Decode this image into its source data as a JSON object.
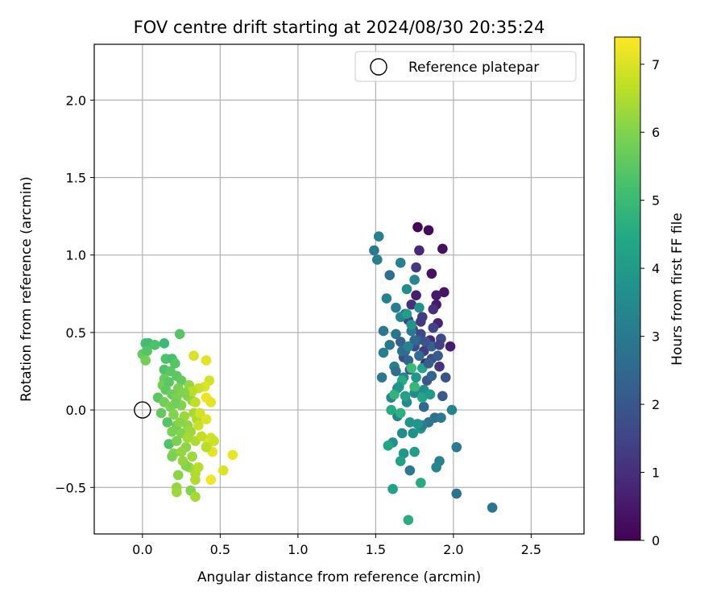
{
  "chart_data": {
    "type": "scatter",
    "title": "FOV centre drift starting at 2024/08/30 20:35:24",
    "xlabel": "Angular distance from reference (arcmin)",
    "ylabel": "Rotation from reference (arcmin)",
    "xlim": [
      -0.31,
      2.84
    ],
    "ylim": [
      -0.8,
      2.36
    ],
    "xticks": [
      "0.0",
      "0.5",
      "1.0",
      "1.5",
      "2.0",
      "2.5"
    ],
    "xtick_values": [
      0,
      0.5,
      1.0,
      1.5,
      2.0,
      2.5
    ],
    "yticks": [
      "−0.5",
      "0.0",
      "0.5",
      "1.0",
      "1.5",
      "2.0"
    ],
    "ytick_values": [
      -0.5,
      0,
      0.5,
      1.0,
      1.5,
      2.0
    ],
    "grid": true,
    "legend": {
      "position": "top-right",
      "entries": [
        "Reference platepar"
      ]
    },
    "reference_point": {
      "x": 0,
      "y": 0,
      "label": "Reference platepar"
    },
    "colorbar": {
      "label": "Hours from first FF file",
      "colormap": "viridis",
      "range": [
        0,
        7.4
      ],
      "ticks": [
        "0",
        "1",
        "2",
        "3",
        "4",
        "5",
        "6",
        "7"
      ],
      "tick_values": [
        0,
        1,
        2,
        3,
        4,
        5,
        6,
        7
      ]
    },
    "points": [
      {
        "x": 1.77,
        "y": 1.18,
        "c": 0.1
      },
      {
        "x": 1.84,
        "y": 1.16,
        "c": 0.2
      },
      {
        "x": 1.93,
        "y": 1.04,
        "c": 0.3
      },
      {
        "x": 1.86,
        "y": 0.88,
        "c": 0.3
      },
      {
        "x": 1.94,
        "y": 0.76,
        "c": 0.4
      },
      {
        "x": 1.89,
        "y": 0.68,
        "c": 0.5
      },
      {
        "x": 1.76,
        "y": 0.74,
        "c": 0.6
      },
      {
        "x": 1.9,
        "y": 0.56,
        "c": 0.7
      },
      {
        "x": 1.98,
        "y": 0.41,
        "c": 0.6
      },
      {
        "x": 1.85,
        "y": 0.45,
        "c": 0.8
      },
      {
        "x": 1.73,
        "y": 0.68,
        "c": 1.0
      },
      {
        "x": 1.82,
        "y": 0.3,
        "c": 0.9
      },
      {
        "x": 1.91,
        "y": 0.28,
        "c": 1.1
      },
      {
        "x": 1.76,
        "y": 0.92,
        "c": 1.2
      },
      {
        "x": 1.8,
        "y": 0.6,
        "c": 1.3
      },
      {
        "x": 1.71,
        "y": 0.58,
        "c": 1.5
      },
      {
        "x": 1.87,
        "y": 0.53,
        "c": 1.4
      },
      {
        "x": 1.79,
        "y": 0.49,
        "c": 1.6
      },
      {
        "x": 1.92,
        "y": 0.46,
        "c": 1.6
      },
      {
        "x": 1.75,
        "y": 0.41,
        "c": 1.7
      },
      {
        "x": 1.86,
        "y": 0.33,
        "c": 1.8
      },
      {
        "x": 1.68,
        "y": 0.34,
        "c": 1.8
      },
      {
        "x": 1.95,
        "y": 0.21,
        "c": 1.9
      },
      {
        "x": 1.72,
        "y": 0.26,
        "c": 2.0
      },
      {
        "x": 1.83,
        "y": 0.19,
        "c": 2.0
      },
      {
        "x": 1.93,
        "y": 0.09,
        "c": 2.1
      },
      {
        "x": 1.77,
        "y": 0.45,
        "c": 2.2
      },
      {
        "x": 1.66,
        "y": 0.44,
        "c": 2.3
      },
      {
        "x": 1.89,
        "y": 0.74,
        "c": 0.5
      },
      {
        "x": 1.81,
        "y": 0.38,
        "c": 1.3
      },
      {
        "x": 1.74,
        "y": 0.52,
        "c": 1.5
      },
      {
        "x": 1.69,
        "y": 0.62,
        "c": 1.6
      },
      {
        "x": 1.78,
        "y": 1.03,
        "c": 0.8
      },
      {
        "x": 1.59,
        "y": 0.87,
        "c": 2.7
      },
      {
        "x": 1.66,
        "y": 0.95,
        "c": 3.2
      },
      {
        "x": 1.49,
        "y": 1.03,
        "c": 3.0
      },
      {
        "x": 1.51,
        "y": 0.97,
        "c": 3.1
      },
      {
        "x": 1.52,
        "y": 1.12,
        "c": 3.3
      },
      {
        "x": 1.75,
        "y": 0.84,
        "c": 3.4
      },
      {
        "x": 1.63,
        "y": 0.66,
        "c": 3.1
      },
      {
        "x": 1.7,
        "y": 0.78,
        "c": 3.6
      },
      {
        "x": 1.57,
        "y": 0.72,
        "c": 3.2
      },
      {
        "x": 1.66,
        "y": 0.6,
        "c": 3.4
      },
      {
        "x": 1.55,
        "y": 0.51,
        "c": 3.0
      },
      {
        "x": 1.63,
        "y": 0.49,
        "c": 2.9
      },
      {
        "x": 1.73,
        "y": 0.51,
        "c": 3.0
      },
      {
        "x": 1.55,
        "y": 0.37,
        "c": 3.1
      },
      {
        "x": 1.59,
        "y": 0.42,
        "c": 2.9
      },
      {
        "x": 1.67,
        "y": 0.38,
        "c": 2.8
      },
      {
        "x": 1.62,
        "y": 0.28,
        "c": 3.2
      },
      {
        "x": 1.68,
        "y": 0.21,
        "c": 3.3
      },
      {
        "x": 1.54,
        "y": 0.21,
        "c": 3.0
      },
      {
        "x": 1.64,
        "y": 0.14,
        "c": 3.2
      },
      {
        "x": 1.75,
        "y": 0.11,
        "c": 3.5
      },
      {
        "x": 1.81,
        "y": 0.13,
        "c": 3.6
      },
      {
        "x": 1.6,
        "y": 0.08,
        "c": 3.4
      },
      {
        "x": 1.7,
        "y": 0.05,
        "c": 3.5
      },
      {
        "x": 1.64,
        "y": -0.04,
        "c": 3.3
      },
      {
        "x": 1.72,
        "y": -0.08,
        "c": 3.8
      },
      {
        "x": 1.79,
        "y": -0.12,
        "c": 3.9
      },
      {
        "x": 1.67,
        "y": -0.15,
        "c": 3.6
      },
      {
        "x": 1.61,
        "y": -0.21,
        "c": 3.7
      },
      {
        "x": 1.68,
        "y": -0.28,
        "c": 3.9
      },
      {
        "x": 1.75,
        "y": -0.27,
        "c": 4.1
      },
      {
        "x": 1.66,
        "y": -0.33,
        "c": 4.2
      },
      {
        "x": 1.72,
        "y": -0.39,
        "c": 3.0
      },
      {
        "x": 1.8,
        "y": 0.27,
        "c": 4.3
      },
      {
        "x": 1.69,
        "y": 0.38,
        "c": 2.6
      },
      {
        "x": 1.75,
        "y": 0.45,
        "c": 2.5
      },
      {
        "x": 1.71,
        "y": 0.32,
        "c": 2.4
      },
      {
        "x": 1.63,
        "y": 0.25,
        "c": 2.7
      },
      {
        "x": 1.78,
        "y": 0.35,
        "c": 2.6
      },
      {
        "x": 1.84,
        "y": 0.3,
        "c": 2.2
      },
      {
        "x": 1.9,
        "y": 0.35,
        "c": 2.1
      },
      {
        "x": 1.86,
        "y": 0.22,
        "c": 2.4
      },
      {
        "x": 1.81,
        "y": 0.02,
        "c": 2.5
      },
      {
        "x": 1.88,
        "y": -0.05,
        "c": 2.7
      },
      {
        "x": 1.92,
        "y": -0.05,
        "c": 3.0
      },
      {
        "x": 1.84,
        "y": -0.08,
        "c": 2.9
      },
      {
        "x": 1.8,
        "y": -0.1,
        "c": 3.1
      },
      {
        "x": 1.91,
        "y": -0.33,
        "c": 3.2
      },
      {
        "x": 1.89,
        "y": -0.37,
        "c": 3.4
      },
      {
        "x": 1.99,
        "y": 0.0,
        "c": 3.3
      },
      {
        "x": 2.02,
        "y": -0.24,
        "c": 3.0
      },
      {
        "x": 2.02,
        "y": -0.54,
        "c": 2.8
      },
      {
        "x": 2.25,
        "y": -0.63,
        "c": 2.9
      },
      {
        "x": 1.61,
        "y": -0.51,
        "c": 4.2
      },
      {
        "x": 1.79,
        "y": -0.47,
        "c": 4.5
      },
      {
        "x": 1.71,
        "y": -0.71,
        "c": 4.6
      },
      {
        "x": 1.58,
        "y": -0.23,
        "c": 4.4
      },
      {
        "x": 1.62,
        "y": 0.1,
        "c": 4.8
      },
      {
        "x": 1.67,
        "y": 0.19,
        "c": 4.6
      },
      {
        "x": 1.73,
        "y": 0.27,
        "c": 5.0
      },
      {
        "x": 1.75,
        "y": 0.15,
        "c": 4.9
      },
      {
        "x": 1.66,
        "y": -0.02,
        "c": 4.7
      },
      {
        "x": 1.6,
        "y": 0.0,
        "c": 4.5
      },
      {
        "x": 1.7,
        "y": 0.62,
        "c": 4.1
      },
      {
        "x": 1.73,
        "y": 0.55,
        "c": 3.8
      },
      {
        "x": 1.78,
        "y": 0.66,
        "c": 3.7
      },
      {
        "x": 1.8,
        "y": 0.08,
        "c": 4.4
      },
      {
        "x": 1.85,
        "y": 0.1,
        "c": 4.0
      },
      {
        "x": 1.77,
        "y": -0.09,
        "c": 3.8
      },
      {
        "x": 1.76,
        "y": 0.21,
        "c": 3.9
      },
      {
        "x": 1.69,
        "y": 0.09,
        "c": 4.2
      },
      {
        "x": 1.74,
        "y": -0.15,
        "c": 3.7
      },
      {
        "x": 1.65,
        "y": 0.15,
        "c": 3.9
      },
      {
        "x": 1.71,
        "y": 0.41,
        "c": 3.3
      },
      {
        "x": 1.86,
        "y": 0.41,
        "c": 2.3
      },
      {
        "x": 1.82,
        "y": 0.44,
        "c": 1.9
      },
      {
        "x": 1.79,
        "y": 0.57,
        "c": 1.2
      },
      {
        "x": 1.87,
        "y": 0.65,
        "c": 1.0
      },
      {
        "x": 1.91,
        "y": 0.42,
        "c": 1.4
      },
      {
        "x": 0.02,
        "y": 0.43,
        "c": 5.2
      },
      {
        "x": 0.04,
        "y": 0.43,
        "c": 5.1
      },
      {
        "x": 0.08,
        "y": 0.42,
        "c": 5.3
      },
      {
        "x": 0.14,
        "y": 0.43,
        "c": 5.0
      },
      {
        "x": 0.24,
        "y": 0.49,
        "c": 5.4
      },
      {
        "x": 0.0,
        "y": 0.36,
        "c": 5.6
      },
      {
        "x": 0.03,
        "y": 0.38,
        "c": 5.4
      },
      {
        "x": 0.02,
        "y": 0.32,
        "c": 5.8
      },
      {
        "x": 0.15,
        "y": 0.33,
        "c": 5.3
      },
      {
        "x": 0.19,
        "y": 0.33,
        "c": 5.2
      },
      {
        "x": 0.21,
        "y": 0.3,
        "c": 5.4
      },
      {
        "x": 0.14,
        "y": 0.26,
        "c": 5.3
      },
      {
        "x": 0.18,
        "y": 0.25,
        "c": 5.5
      },
      {
        "x": 0.22,
        "y": 0.22,
        "c": 5.5
      },
      {
        "x": 0.14,
        "y": 0.2,
        "c": 5.7
      },
      {
        "x": 0.25,
        "y": 0.19,
        "c": 5.6
      },
      {
        "x": 0.13,
        "y": 0.16,
        "c": 5.8
      },
      {
        "x": 0.23,
        "y": 0.14,
        "c": 5.9
      },
      {
        "x": 0.3,
        "y": 0.16,
        "c": 6.2
      },
      {
        "x": 0.15,
        "y": 0.13,
        "c": 5.6
      },
      {
        "x": 0.19,
        "y": 0.1,
        "c": 5.7
      },
      {
        "x": 0.22,
        "y": 0.08,
        "c": 5.9
      },
      {
        "x": 0.1,
        "y": 0.08,
        "c": 5.5
      },
      {
        "x": 0.14,
        "y": 0.05,
        "c": 5.8
      },
      {
        "x": 0.18,
        "y": 0.02,
        "c": 5.9
      },
      {
        "x": 0.25,
        "y": 0.03,
        "c": 6.0
      },
      {
        "x": 0.32,
        "y": 0.06,
        "c": 6.2
      },
      {
        "x": 0.29,
        "y": 0.09,
        "c": 6.1
      },
      {
        "x": 0.12,
        "y": -0.02,
        "c": 5.6
      },
      {
        "x": 0.2,
        "y": -0.03,
        "c": 6.0
      },
      {
        "x": 0.27,
        "y": -0.04,
        "c": 6.3
      },
      {
        "x": 0.33,
        "y": -0.02,
        "c": 6.4
      },
      {
        "x": 0.16,
        "y": -0.08,
        "c": 5.4
      },
      {
        "x": 0.22,
        "y": -0.1,
        "c": 5.8
      },
      {
        "x": 0.29,
        "y": -0.1,
        "c": 6.2
      },
      {
        "x": 0.35,
        "y": -0.06,
        "c": 6.5
      },
      {
        "x": 0.19,
        "y": -0.14,
        "c": 5.9
      },
      {
        "x": 0.25,
        "y": -0.15,
        "c": 6.0
      },
      {
        "x": 0.31,
        "y": -0.14,
        "c": 6.3
      },
      {
        "x": 0.17,
        "y": -0.22,
        "c": 5.3
      },
      {
        "x": 0.22,
        "y": -0.2,
        "c": 5.9
      },
      {
        "x": 0.28,
        "y": -0.24,
        "c": 6.1
      },
      {
        "x": 0.34,
        "y": -0.2,
        "c": 6.5
      },
      {
        "x": 0.2,
        "y": -0.28,
        "c": 6.0
      },
      {
        "x": 0.25,
        "y": -0.27,
        "c": 6.2
      },
      {
        "x": 0.32,
        "y": -0.3,
        "c": 6.3
      },
      {
        "x": 0.19,
        "y": -0.3,
        "c": 5.9
      },
      {
        "x": 0.3,
        "y": -0.37,
        "c": 6.3
      },
      {
        "x": 0.34,
        "y": -0.41,
        "c": 6.5
      },
      {
        "x": 0.23,
        "y": -0.42,
        "c": 6.1
      },
      {
        "x": 0.28,
        "y": -0.36,
        "c": 6.0
      },
      {
        "x": 0.22,
        "y": -0.5,
        "c": 6.2
      },
      {
        "x": 0.22,
        "y": -0.53,
        "c": 6.3
      },
      {
        "x": 0.31,
        "y": -0.52,
        "c": 6.0
      },
      {
        "x": 0.34,
        "y": -0.56,
        "c": 6.4
      },
      {
        "x": 0.34,
        "y": -0.45,
        "c": 6.5
      },
      {
        "x": 0.33,
        "y": 0.35,
        "c": 7.0
      },
      {
        "x": 0.41,
        "y": 0.32,
        "c": 7.1
      },
      {
        "x": 0.43,
        "y": 0.19,
        "c": 6.9
      },
      {
        "x": 0.4,
        "y": 0.15,
        "c": 7.0
      },
      {
        "x": 0.36,
        "y": 0.14,
        "c": 6.8
      },
      {
        "x": 0.41,
        "y": 0.08,
        "c": 7.2
      },
      {
        "x": 0.44,
        "y": 0.05,
        "c": 7.1
      },
      {
        "x": 0.34,
        "y": 0.05,
        "c": 6.7
      },
      {
        "x": 0.37,
        "y": -0.02,
        "c": 6.9
      },
      {
        "x": 0.41,
        "y": -0.06,
        "c": 7.0
      },
      {
        "x": 0.36,
        "y": -0.1,
        "c": 6.8
      },
      {
        "x": 0.44,
        "y": -0.18,
        "c": 6.9
      },
      {
        "x": 0.42,
        "y": -0.22,
        "c": 7.0
      },
      {
        "x": 0.46,
        "y": -0.2,
        "c": 6.8
      },
      {
        "x": 0.45,
        "y": -0.27,
        "c": 7.1
      },
      {
        "x": 0.58,
        "y": -0.29,
        "c": 7.2
      },
      {
        "x": 0.52,
        "y": -0.39,
        "c": 7.0
      },
      {
        "x": 0.44,
        "y": -0.45,
        "c": 7.3
      },
      {
        "x": 0.41,
        "y": -0.24,
        "c": 6.6
      },
      {
        "x": 0.38,
        "y": -0.17,
        "c": 6.7
      },
      {
        "x": 0.32,
        "y": 0.12,
        "c": 6.6
      },
      {
        "x": 0.29,
        "y": -0.18,
        "c": 6.4
      },
      {
        "x": 0.26,
        "y": -0.33,
        "c": 6.2
      },
      {
        "x": 0.36,
        "y": -0.37,
        "c": 6.6
      },
      {
        "x": 0.24,
        "y": -0.08,
        "c": 6.1
      },
      {
        "x": 0.17,
        "y": 0.18,
        "c": 5.5
      },
      {
        "x": 0.27,
        "y": 0.11,
        "c": 6.0
      },
      {
        "x": 0.21,
        "y": 0.04,
        "c": 5.8
      }
    ]
  }
}
